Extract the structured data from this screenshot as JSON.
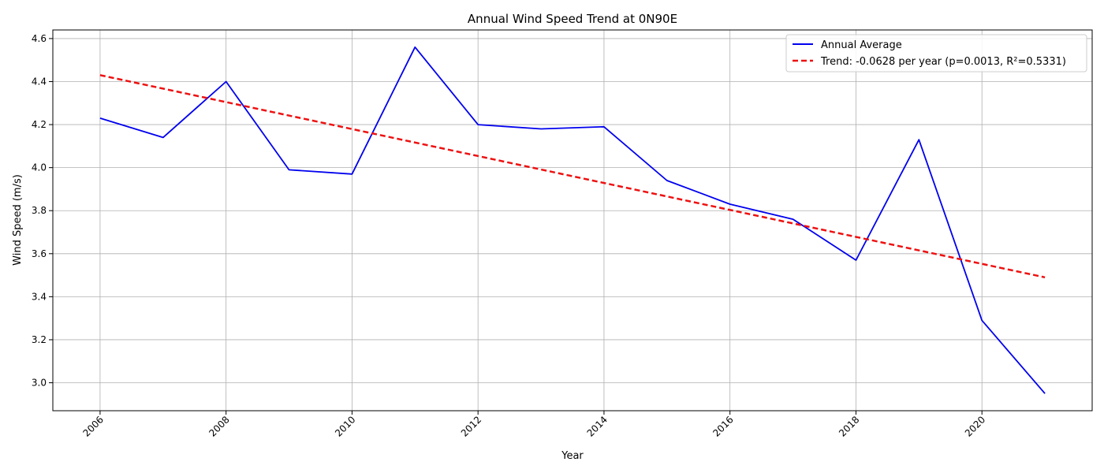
{
  "chart_data": {
    "type": "line",
    "title": "Annual Wind Speed Trend at 0N90E",
    "xlabel": "Year",
    "ylabel": "Wind Speed (m/s)",
    "xlim": [
      2005.25,
      2021.75
    ],
    "ylim": [
      2.87,
      4.64
    ],
    "xticks": [
      2006,
      2008,
      2010,
      2012,
      2014,
      2016,
      2018,
      2020
    ],
    "yticks": [
      3.0,
      3.2,
      3.4,
      3.6,
      3.8,
      4.0,
      4.2,
      4.4,
      4.6
    ],
    "ytick_labels": [
      "3.0",
      "3.2",
      "3.4",
      "3.6",
      "3.8",
      "4.0",
      "4.2",
      "4.4",
      "4.6"
    ],
    "grid": true,
    "legend_position": "top-right",
    "series": [
      {
        "name": "Annual Average",
        "color": "#0000ee",
        "style": "solid",
        "x": [
          2006,
          2007,
          2008,
          2009,
          2010,
          2011,
          2012,
          2013,
          2014,
          2015,
          2016,
          2017,
          2018,
          2019,
          2020,
          2021
        ],
        "y": [
          4.23,
          4.14,
          4.4,
          3.99,
          3.97,
          4.56,
          4.2,
          4.18,
          4.19,
          3.94,
          3.83,
          3.76,
          3.57,
          4.13,
          3.29,
          2.95
        ]
      },
      {
        "name": "Trend: -0.0628 per year (p=0.0013, R²=0.5331)",
        "color": "#ee1111",
        "style": "dashed",
        "x": [
          2006,
          2021
        ],
        "y": [
          4.43,
          3.49
        ]
      }
    ]
  }
}
